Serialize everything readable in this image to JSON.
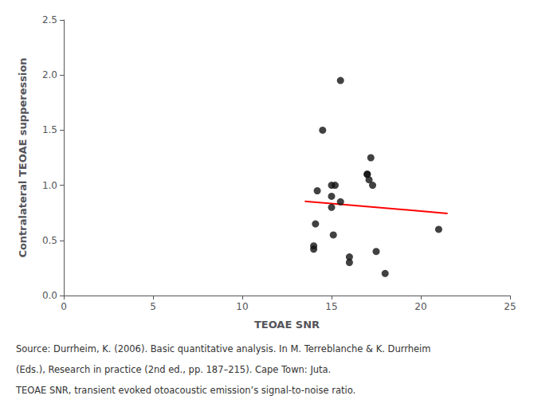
{
  "chart_data": {
    "type": "scatter",
    "xlabel": "TEOAE SNR",
    "ylabel": "Contralateral TEOAE supperession",
    "series": [
      {
        "type": "scatter",
        "color": "#111111",
        "x": [
          14,
          14,
          14.1,
          14.2,
          14.5,
          15,
          15,
          15,
          15.1,
          15.2,
          15.5,
          15.5,
          16,
          16,
          17,
          17,
          17.1,
          17.2,
          17.3,
          17.5,
          18,
          21
        ],
        "values": [
          0.45,
          0.42,
          0.65,
          0.95,
          1.5,
          0.9,
          1.0,
          0.8,
          0.55,
          1.0,
          0.85,
          1.95,
          0.3,
          0.35,
          1.1,
          1.1,
          1.05,
          1.25,
          1.0,
          0.4,
          0.2,
          0.6
        ]
      },
      {
        "type": "line",
        "color": "#ff0000",
        "x": [
          13.5,
          21.5
        ],
        "values": [
          0.855,
          0.745
        ]
      }
    ],
    "xlim": [
      0,
      25
    ],
    "ylim": [
      0,
      2.5
    ],
    "xticks": [
      0,
      5,
      10,
      15,
      20,
      25
    ],
    "yticks": [
      {
        "value": 0,
        "label": "0.0"
      },
      0.5,
      {
        "value": 1,
        "label": "1.0"
      },
      1.5,
      {
        "value": 2,
        "label": "2.0"
      },
      2.5
    ],
    "grid": false,
    "annotations": [
      "Source: Durrheim, K. (2006). Basic quantitative analysis. In M. Terreblanche & K. Durrheim",
      "(Eds.), Research in practice (2nd ed., pp. 187–215). Cape Town: Juta.",
      "TEOAE SNR, transient evoked otoacoustic emission’s signal-to-noise ratio."
    ]
  }
}
